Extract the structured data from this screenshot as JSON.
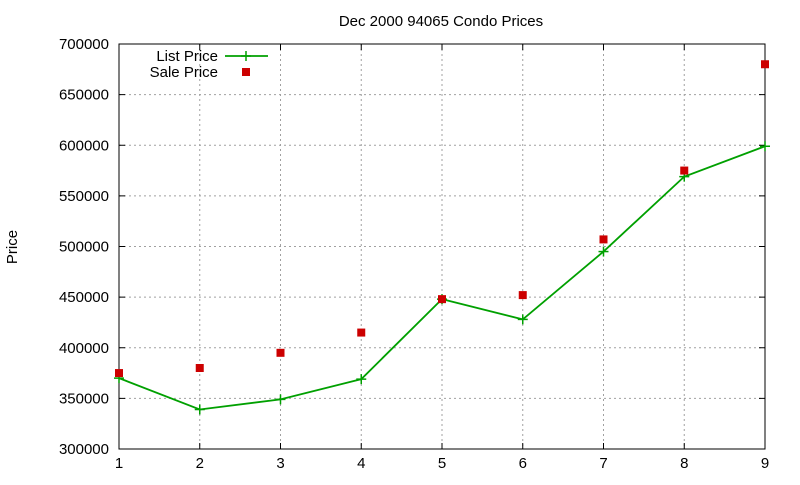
{
  "chart_data": {
    "type": "line",
    "title": "Dec 2000 94065 Condo Prices",
    "xlabel": "",
    "ylabel": "Price",
    "xlim": [
      1,
      9
    ],
    "ylim": [
      300000,
      700000
    ],
    "x_ticks": [
      1,
      2,
      3,
      4,
      5,
      6,
      7,
      8,
      9
    ],
    "y_ticks": [
      300000,
      350000,
      400000,
      450000,
      500000,
      550000,
      600000,
      650000,
      700000
    ],
    "grid": true,
    "legend_position": "top-left",
    "series": [
      {
        "name": "List Price",
        "style": "linespoints",
        "marker": "plus",
        "color": "#00a000",
        "x": [
          1,
          2,
          3,
          4,
          5,
          6,
          7,
          8,
          9
        ],
        "values": [
          370000,
          339000,
          349000,
          369000,
          448000,
          428000,
          495000,
          569000,
          599000
        ]
      },
      {
        "name": "Sale Price",
        "style": "points",
        "marker": "square",
        "color": "#cc0000",
        "x": [
          1,
          2,
          3,
          4,
          5,
          6,
          7,
          8,
          9
        ],
        "values": [
          375000,
          380000,
          395000,
          415000,
          448000,
          452000,
          507000,
          575000,
          680000
        ]
      }
    ]
  }
}
